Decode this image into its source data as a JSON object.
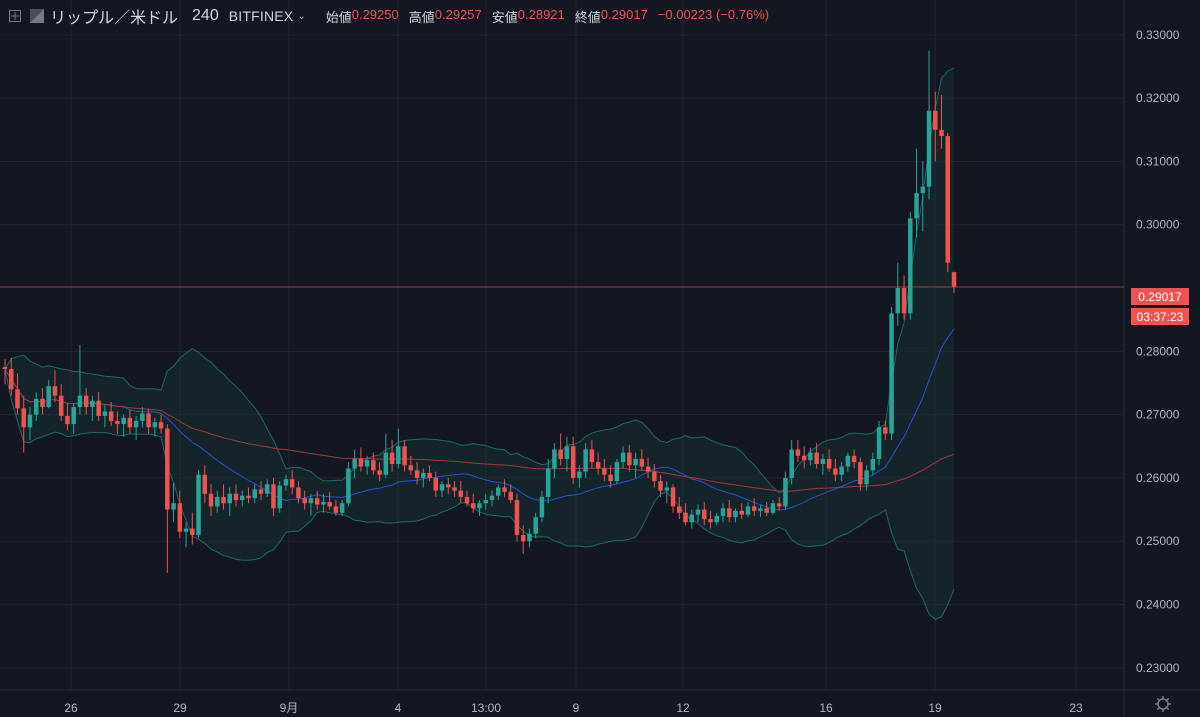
{
  "header": {
    "symbol": "リップル／米ドル",
    "interval": "240",
    "exchange": "BITFINEX",
    "open_label": "始値",
    "open": "0.29250",
    "high_label": "高値",
    "high": "0.29257",
    "low_label": "安値",
    "low": "0.28921",
    "close_label": "終値",
    "close": "0.29017",
    "change": "−0.00223 (−0.76%)"
  },
  "price_axis": {
    "ticks": [
      "0.33000",
      "0.32000",
      "0.31000",
      "0.30000",
      "0.28000",
      "0.27000",
      "0.26000",
      "0.25000",
      "0.24000",
      "0.23000"
    ],
    "current_price": "0.29017",
    "countdown": "03:37:23"
  },
  "time_axis": {
    "ticks": [
      "26",
      "29",
      "9月",
      "4",
      "13:00",
      "9",
      "12",
      "16",
      "19",
      "23"
    ]
  },
  "colors": {
    "background": "#131722",
    "up": "#26a69a",
    "down": "#ef5350",
    "grid": "#232632",
    "bollinger": "#1f6b67",
    "ma_blue": "#2962ff",
    "ma_red": "#a33b3b"
  },
  "chart_data": {
    "type": "candlestick",
    "y_range": [
      0.2265,
      0.3355
    ],
    "last_price": 0.29017,
    "candles": [
      [
        0.2775,
        0.2788,
        0.2748,
        0.2772
      ],
      [
        0.2772,
        0.279,
        0.273,
        0.274
      ],
      [
        0.274,
        0.2765,
        0.27,
        0.271
      ],
      [
        0.271,
        0.273,
        0.264,
        0.268
      ],
      [
        0.268,
        0.2712,
        0.266,
        0.27
      ],
      [
        0.27,
        0.2735,
        0.269,
        0.2725
      ],
      [
        0.2725,
        0.2742,
        0.27,
        0.2712
      ],
      [
        0.2712,
        0.2755,
        0.271,
        0.2745
      ],
      [
        0.2745,
        0.277,
        0.272,
        0.273
      ],
      [
        0.273,
        0.2748,
        0.269,
        0.2698
      ],
      [
        0.2698,
        0.2718,
        0.2675,
        0.2685
      ],
      [
        0.2685,
        0.2718,
        0.267,
        0.2712
      ],
      [
        0.2712,
        0.281,
        0.27,
        0.273
      ],
      [
        0.273,
        0.2742,
        0.27,
        0.2712
      ],
      [
        0.2712,
        0.273,
        0.269,
        0.2722
      ],
      [
        0.2722,
        0.2736,
        0.269,
        0.2698
      ],
      [
        0.2698,
        0.2715,
        0.268,
        0.2705
      ],
      [
        0.2705,
        0.272,
        0.2682,
        0.269
      ],
      [
        0.269,
        0.2705,
        0.267,
        0.2685
      ],
      [
        0.2685,
        0.27,
        0.2665,
        0.2695
      ],
      [
        0.2695,
        0.2708,
        0.267,
        0.268
      ],
      [
        0.268,
        0.2698,
        0.266,
        0.269
      ],
      [
        0.269,
        0.2712,
        0.268,
        0.2702
      ],
      [
        0.2702,
        0.271,
        0.267,
        0.268
      ],
      [
        0.268,
        0.2695,
        0.2665,
        0.2688
      ],
      [
        0.2688,
        0.27,
        0.267,
        0.2678
      ],
      [
        0.2678,
        0.2685,
        0.245,
        0.255
      ],
      [
        0.255,
        0.2592,
        0.253,
        0.256
      ],
      [
        0.256,
        0.258,
        0.2505,
        0.2515
      ],
      [
        0.2515,
        0.253,
        0.249,
        0.252
      ],
      [
        0.252,
        0.2545,
        0.2495,
        0.251
      ],
      [
        0.251,
        0.2612,
        0.2505,
        0.2605
      ],
      [
        0.2605,
        0.262,
        0.256,
        0.2575
      ],
      [
        0.2575,
        0.259,
        0.254,
        0.2555
      ],
      [
        0.2555,
        0.258,
        0.2545,
        0.257
      ],
      [
        0.257,
        0.259,
        0.255,
        0.256
      ],
      [
        0.256,
        0.2585,
        0.254,
        0.2575
      ],
      [
        0.2575,
        0.259,
        0.2555,
        0.2565
      ],
      [
        0.2565,
        0.258,
        0.2555,
        0.2572
      ],
      [
        0.2572,
        0.2585,
        0.256,
        0.2568
      ],
      [
        0.2568,
        0.259,
        0.256,
        0.2582
      ],
      [
        0.2582,
        0.2595,
        0.2565,
        0.2575
      ],
      [
        0.2575,
        0.2598,
        0.257,
        0.259
      ],
      [
        0.259,
        0.26,
        0.254,
        0.2552
      ],
      [
        0.2552,
        0.2595,
        0.2545,
        0.2588
      ],
      [
        0.2588,
        0.2605,
        0.258,
        0.2598
      ],
      [
        0.2598,
        0.2612,
        0.2575,
        0.2585
      ],
      [
        0.2585,
        0.2595,
        0.256,
        0.2568
      ],
      [
        0.2568,
        0.258,
        0.255,
        0.256
      ],
      [
        0.256,
        0.2575,
        0.254,
        0.2568
      ],
      [
        0.2568,
        0.258,
        0.255,
        0.2558
      ],
      [
        0.2558,
        0.2575,
        0.2545,
        0.2562
      ],
      [
        0.2562,
        0.2578,
        0.255,
        0.2555
      ],
      [
        0.2555,
        0.2565,
        0.254,
        0.2545
      ],
      [
        0.2545,
        0.2565,
        0.254,
        0.256
      ],
      [
        0.256,
        0.2625,
        0.2555,
        0.2615
      ],
      [
        0.2615,
        0.2645,
        0.26,
        0.263
      ],
      [
        0.263,
        0.2648,
        0.261,
        0.2618
      ],
      [
        0.2618,
        0.2635,
        0.2605,
        0.2628
      ],
      [
        0.2628,
        0.264,
        0.2605,
        0.2612
      ],
      [
        0.2612,
        0.2625,
        0.2595,
        0.2605
      ],
      [
        0.2605,
        0.267,
        0.26,
        0.264
      ],
      [
        0.264,
        0.266,
        0.261,
        0.2622
      ],
      [
        0.2622,
        0.2678,
        0.2615,
        0.265
      ],
      [
        0.265,
        0.266,
        0.261,
        0.262
      ],
      [
        0.262,
        0.2635,
        0.2605,
        0.2612
      ],
      [
        0.2612,
        0.2625,
        0.259,
        0.26
      ],
      [
        0.26,
        0.2615,
        0.2585,
        0.2608
      ],
      [
        0.2608,
        0.262,
        0.2595,
        0.26
      ],
      [
        0.26,
        0.261,
        0.257,
        0.258
      ],
      [
        0.258,
        0.2595,
        0.257,
        0.259
      ],
      [
        0.259,
        0.26,
        0.2575,
        0.2585
      ],
      [
        0.2585,
        0.2595,
        0.257,
        0.258
      ],
      [
        0.258,
        0.2595,
        0.256,
        0.257
      ],
      [
        0.257,
        0.258,
        0.2555,
        0.256
      ],
      [
        0.256,
        0.2575,
        0.2545,
        0.2552
      ],
      [
        0.2552,
        0.2565,
        0.254,
        0.256
      ],
      [
        0.256,
        0.2575,
        0.255,
        0.2565
      ],
      [
        0.2565,
        0.258,
        0.2555,
        0.2572
      ],
      [
        0.2572,
        0.259,
        0.2565,
        0.2585
      ],
      [
        0.2585,
        0.2598,
        0.257,
        0.2578
      ],
      [
        0.2578,
        0.259,
        0.256,
        0.2565
      ],
      [
        0.2565,
        0.2575,
        0.25,
        0.251
      ],
      [
        0.251,
        0.2525,
        0.248,
        0.25
      ],
      [
        0.25,
        0.252,
        0.249,
        0.2512
      ],
      [
        0.2512,
        0.2545,
        0.2505,
        0.2538
      ],
      [
        0.2538,
        0.258,
        0.253,
        0.257
      ],
      [
        0.257,
        0.263,
        0.256,
        0.2615
      ],
      [
        0.2615,
        0.2655,
        0.26,
        0.2645
      ],
      [
        0.2645,
        0.267,
        0.262,
        0.263
      ],
      [
        0.263,
        0.2665,
        0.261,
        0.265
      ],
      [
        0.265,
        0.2665,
        0.259,
        0.26
      ],
      [
        0.26,
        0.262,
        0.2585,
        0.261
      ],
      [
        0.261,
        0.2655,
        0.26,
        0.2645
      ],
      [
        0.2645,
        0.266,
        0.2615,
        0.2625
      ],
      [
        0.2625,
        0.264,
        0.2605,
        0.2615
      ],
      [
        0.2615,
        0.263,
        0.2595,
        0.2605
      ],
      [
        0.2605,
        0.262,
        0.2585,
        0.2595
      ],
      [
        0.2595,
        0.263,
        0.259,
        0.2625
      ],
      [
        0.2625,
        0.265,
        0.2615,
        0.264
      ],
      [
        0.264,
        0.2652,
        0.261,
        0.262
      ],
      [
        0.262,
        0.264,
        0.26,
        0.263
      ],
      [
        0.263,
        0.2645,
        0.2612,
        0.2618
      ],
      [
        0.2618,
        0.2632,
        0.26,
        0.261
      ],
      [
        0.261,
        0.2622,
        0.2585,
        0.2595
      ],
      [
        0.2595,
        0.2605,
        0.257,
        0.258
      ],
      [
        0.258,
        0.2595,
        0.256,
        0.2585
      ],
      [
        0.2585,
        0.259,
        0.2545,
        0.2555
      ],
      [
        0.2555,
        0.257,
        0.2535,
        0.2545
      ],
      [
        0.2545,
        0.256,
        0.2525,
        0.253
      ],
      [
        0.253,
        0.255,
        0.252,
        0.2542
      ],
      [
        0.2542,
        0.2558,
        0.253,
        0.255
      ],
      [
        0.255,
        0.2562,
        0.2525,
        0.2535
      ],
      [
        0.2535,
        0.2548,
        0.252,
        0.253
      ],
      [
        0.253,
        0.2545,
        0.2525,
        0.254
      ],
      [
        0.254,
        0.256,
        0.253,
        0.2552
      ],
      [
        0.2552,
        0.2565,
        0.253,
        0.2538
      ],
      [
        0.2538,
        0.2552,
        0.253,
        0.2548
      ],
      [
        0.2548,
        0.256,
        0.2535,
        0.2542
      ],
      [
        0.2542,
        0.2562,
        0.2538,
        0.2555
      ],
      [
        0.2555,
        0.2568,
        0.254,
        0.2548
      ],
      [
        0.2548,
        0.2558,
        0.2538,
        0.2552
      ],
      [
        0.2552,
        0.2562,
        0.254,
        0.2545
      ],
      [
        0.2545,
        0.2565,
        0.2542,
        0.256
      ],
      [
        0.256,
        0.257,
        0.2548,
        0.2555
      ],
      [
        0.2555,
        0.261,
        0.255,
        0.26
      ],
      [
        0.26,
        0.266,
        0.259,
        0.2645
      ],
      [
        0.2645,
        0.266,
        0.2625,
        0.2635
      ],
      [
        0.2635,
        0.265,
        0.2615,
        0.2628
      ],
      [
        0.2628,
        0.2648,
        0.262,
        0.264
      ],
      [
        0.264,
        0.2655,
        0.2615,
        0.2622
      ],
      [
        0.2622,
        0.2638,
        0.2605,
        0.263
      ],
      [
        0.263,
        0.2645,
        0.261,
        0.2615
      ],
      [
        0.2615,
        0.263,
        0.2595,
        0.2605
      ],
      [
        0.2605,
        0.2625,
        0.2595,
        0.2618
      ],
      [
        0.2618,
        0.264,
        0.261,
        0.2635
      ],
      [
        0.2635,
        0.2645,
        0.2615,
        0.2625
      ],
      [
        0.2625,
        0.2632,
        0.258,
        0.259
      ],
      [
        0.259,
        0.262,
        0.258,
        0.2612
      ],
      [
        0.2612,
        0.264,
        0.2605,
        0.263
      ],
      [
        0.263,
        0.269,
        0.262,
        0.268
      ],
      [
        0.268,
        0.269,
        0.266,
        0.267
      ],
      [
        0.267,
        0.287,
        0.266,
        0.286
      ],
      [
        0.286,
        0.294,
        0.284,
        0.29
      ],
      [
        0.29,
        0.292,
        0.285,
        0.286
      ],
      [
        0.286,
        0.302,
        0.285,
        0.301
      ],
      [
        0.301,
        0.312,
        0.298,
        0.305
      ],
      [
        0.305,
        0.31,
        0.299,
        0.306
      ],
      [
        0.306,
        0.3275,
        0.304,
        0.318
      ],
      [
        0.318,
        0.321,
        0.31,
        0.315
      ],
      [
        0.315,
        0.3205,
        0.312,
        0.314
      ],
      [
        0.314,
        0.3145,
        0.2925,
        0.294
      ],
      [
        0.2925,
        0.2926,
        0.2892,
        0.2902
      ]
    ]
  }
}
